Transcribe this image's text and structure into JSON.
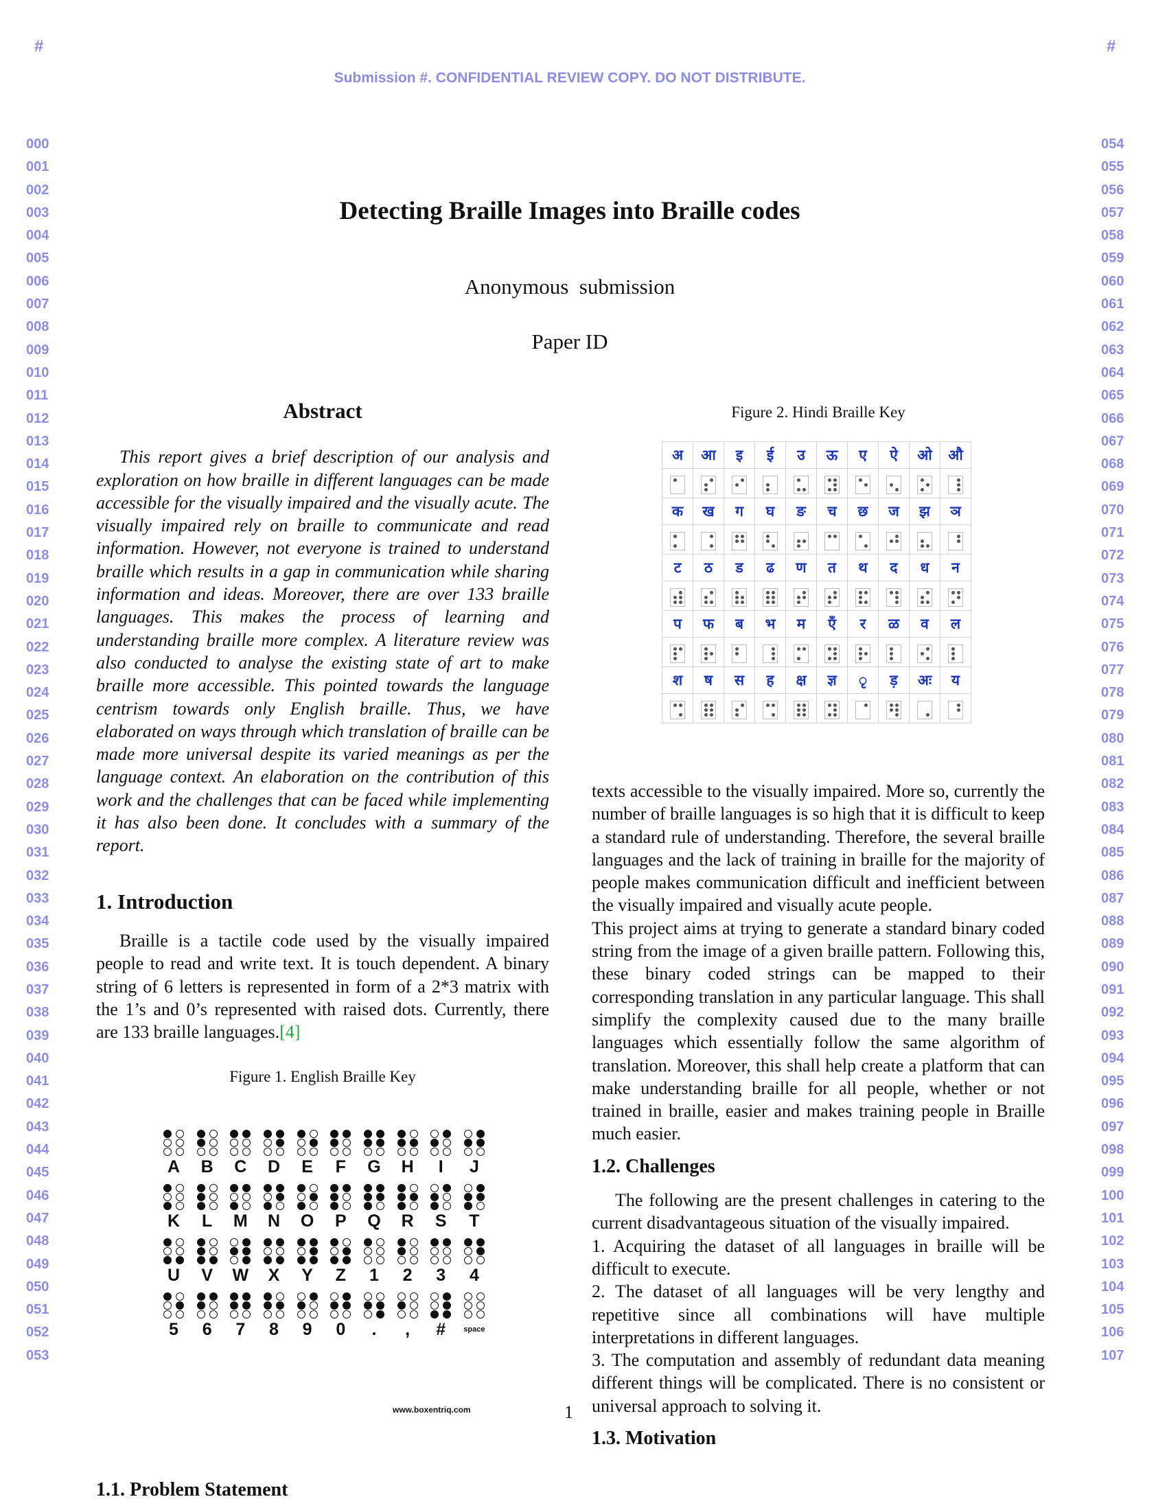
{
  "header": {
    "corner_left": "#",
    "corner_right": "#",
    "banner": "Submission #. CONFIDENTIAL REVIEW COPY. DO NOT DISTRIBUTE."
  },
  "line_numbers_left": [
    "000",
    "001",
    "002",
    "003",
    "004",
    "005",
    "006",
    "007",
    "008",
    "009",
    "010",
    "011",
    "012",
    "013",
    "014",
    "015",
    "016",
    "017",
    "018",
    "019",
    "020",
    "021",
    "022",
    "023",
    "024",
    "025",
    "026",
    "027",
    "028",
    "029",
    "030",
    "031",
    "032",
    "033",
    "034",
    "035",
    "036",
    "037",
    "038",
    "039",
    "040",
    "041",
    "042",
    "043",
    "044",
    "045",
    "046",
    "047",
    "048",
    "049",
    "050",
    "051",
    "052",
    "053"
  ],
  "line_numbers_right": [
    "054",
    "055",
    "056",
    "057",
    "058",
    "059",
    "060",
    "061",
    "062",
    "063",
    "064",
    "065",
    "066",
    "067",
    "068",
    "069",
    "070",
    "071",
    "072",
    "073",
    "074",
    "075",
    "076",
    "077",
    "078",
    "079",
    "080",
    "081",
    "082",
    "083",
    "084",
    "085",
    "086",
    "087",
    "088",
    "089",
    "090",
    "091",
    "092",
    "093",
    "094",
    "095",
    "096",
    "097",
    "098",
    "099",
    "100",
    "101",
    "102",
    "103",
    "104",
    "105",
    "106",
    "107"
  ],
  "paper": {
    "title": "Detecting Braille Images into Braille codes",
    "author": "Anonymous  submission",
    "paper_id": "Paper ID"
  },
  "abstract": {
    "heading": "Abstract",
    "text": "This report gives a brief description of our analysis and exploration on how braille in different languages can be made accessible for the visually impaired and the visually acute. The visually impaired rely on braille to communicate and read information. However, not everyone is trained to understand braille which results in a gap in communication while sharing information and ideas. Moreover, there are over 133 braille languages. This makes the process of learning and understanding braille more complex. A literature review was also conducted to analyse the existing state of art to make braille more accessible. This pointed towards the language centrism towards only English braille. Thus, we have elaborated on ways through which translation of braille can be made more universal despite its varied meanings as per the language context. An elaboration on the contribution of this work and the challenges that can be faced while implementing it has also been done. It concludes with a summary of the report."
  },
  "intro": {
    "heading": "1. Introduction",
    "text": "Braille is a tactile code used by the visually impaired people to read and write text. It is touch dependent. A binary string of 6 letters is represented in form of a 2*3 matrix with the 1’s and 0’s represented with raised dots. Currently, there are 133 braille languages.",
    "cite": "4"
  },
  "figure1": {
    "caption": "Figure 1. English Braille Key",
    "website": "www.boxentriq.com",
    "rows": [
      [
        {
          "l": "A",
          "d": [
            1,
            0,
            0,
            0,
            0,
            0
          ]
        },
        {
          "l": "B",
          "d": [
            1,
            0,
            1,
            0,
            0,
            0
          ]
        },
        {
          "l": "C",
          "d": [
            1,
            1,
            0,
            0,
            0,
            0
          ]
        },
        {
          "l": "D",
          "d": [
            1,
            1,
            0,
            1,
            0,
            0
          ]
        },
        {
          "l": "E",
          "d": [
            1,
            0,
            0,
            1,
            0,
            0
          ]
        },
        {
          "l": "F",
          "d": [
            1,
            1,
            1,
            0,
            0,
            0
          ]
        },
        {
          "l": "G",
          "d": [
            1,
            1,
            1,
            1,
            0,
            0
          ]
        },
        {
          "l": "H",
          "d": [
            1,
            0,
            1,
            1,
            0,
            0
          ]
        },
        {
          "l": "I",
          "d": [
            0,
            1,
            1,
            0,
            0,
            0
          ]
        },
        {
          "l": "J",
          "d": [
            0,
            1,
            1,
            1,
            0,
            0
          ]
        }
      ],
      [
        {
          "l": "K",
          "d": [
            1,
            0,
            0,
            0,
            1,
            0
          ]
        },
        {
          "l": "L",
          "d": [
            1,
            0,
            1,
            0,
            1,
            0
          ]
        },
        {
          "l": "M",
          "d": [
            1,
            1,
            0,
            0,
            1,
            0
          ]
        },
        {
          "l": "N",
          "d": [
            1,
            1,
            0,
            1,
            1,
            0
          ]
        },
        {
          "l": "O",
          "d": [
            1,
            0,
            0,
            1,
            1,
            0
          ]
        },
        {
          "l": "P",
          "d": [
            1,
            1,
            1,
            0,
            1,
            0
          ]
        },
        {
          "l": "Q",
          "d": [
            1,
            1,
            1,
            1,
            1,
            0
          ]
        },
        {
          "l": "R",
          "d": [
            1,
            0,
            1,
            1,
            1,
            0
          ]
        },
        {
          "l": "S",
          "d": [
            0,
            1,
            1,
            0,
            1,
            0
          ]
        },
        {
          "l": "T",
          "d": [
            0,
            1,
            1,
            1,
            1,
            0
          ]
        }
      ],
      [
        {
          "l": "U",
          "d": [
            1,
            0,
            0,
            0,
            1,
            1
          ]
        },
        {
          "l": "V",
          "d": [
            1,
            0,
            1,
            0,
            1,
            1
          ]
        },
        {
          "l": "W",
          "d": [
            0,
            1,
            1,
            1,
            0,
            1
          ]
        },
        {
          "l": "X",
          "d": [
            1,
            1,
            0,
            0,
            1,
            1
          ]
        },
        {
          "l": "Y",
          "d": [
            1,
            1,
            0,
            1,
            1,
            1
          ]
        },
        {
          "l": "Z",
          "d": [
            1,
            0,
            0,
            1,
            1,
            1
          ]
        },
        {
          "l": "1",
          "d": [
            1,
            0,
            0,
            0,
            0,
            0
          ]
        },
        {
          "l": "2",
          "d": [
            1,
            0,
            1,
            0,
            0,
            0
          ]
        },
        {
          "l": "3",
          "d": [
            1,
            1,
            0,
            0,
            0,
            0
          ]
        },
        {
          "l": "4",
          "d": [
            1,
            1,
            0,
            1,
            0,
            0
          ]
        }
      ],
      [
        {
          "l": "5",
          "d": [
            1,
            0,
            0,
            1,
            0,
            0
          ]
        },
        {
          "l": "6",
          "d": [
            1,
            1,
            1,
            0,
            0,
            0
          ]
        },
        {
          "l": "7",
          "d": [
            1,
            1,
            1,
            1,
            0,
            0
          ]
        },
        {
          "l": "8",
          "d": [
            1,
            0,
            1,
            1,
            0,
            0
          ]
        },
        {
          "l": "9",
          "d": [
            0,
            1,
            1,
            0,
            0,
            0
          ]
        },
        {
          "l": "0",
          "d": [
            0,
            1,
            1,
            1,
            0,
            0
          ]
        },
        {
          "l": ".",
          "d": [
            0,
            0,
            1,
            1,
            0,
            1
          ]
        },
        {
          "l": ",",
          "d": [
            0,
            0,
            1,
            0,
            0,
            0
          ]
        },
        {
          "l": "#",
          "d": [
            0,
            1,
            0,
            1,
            1,
            1
          ]
        },
        {
          "l": "space",
          "d": [
            0,
            0,
            0,
            0,
            0,
            0
          ]
        }
      ]
    ]
  },
  "problem": {
    "heading": "1.1. Problem Statement"
  },
  "figure2": {
    "caption": "Figure 2. Hindi Braille Key",
    "rows": [
      [
        {
          "c": "अ",
          "d": [
            1,
            0,
            0,
            0,
            0,
            0
          ]
        },
        {
          "c": "आ",
          "d": [
            0,
            1,
            1,
            0,
            1,
            0
          ]
        },
        {
          "c": "इ",
          "d": [
            0,
            1,
            1,
            0,
            0,
            0
          ]
        },
        {
          "c": "ई",
          "d": [
            0,
            0,
            1,
            0,
            1,
            0
          ]
        },
        {
          "c": "उ",
          "d": [
            1,
            0,
            0,
            0,
            1,
            1
          ]
        },
        {
          "c": "ऊ",
          "d": [
            1,
            1,
            0,
            1,
            1,
            1
          ]
        },
        {
          "c": "ए",
          "d": [
            1,
            0,
            0,
            1,
            0,
            0
          ]
        },
        {
          "c": "ऐ",
          "d": [
            0,
            0,
            1,
            0,
            0,
            1
          ]
        },
        {
          "c": "ओ",
          "d": [
            1,
            0,
            0,
            1,
            1,
            0
          ]
        },
        {
          "c": "औ",
          "d": [
            0,
            1,
            0,
            1,
            0,
            1
          ]
        }
      ],
      [
        {
          "c": "क",
          "d": [
            1,
            0,
            0,
            0,
            1,
            0
          ]
        },
        {
          "c": "ख",
          "d": [
            0,
            1,
            0,
            0,
            0,
            1
          ]
        },
        {
          "c": "ग",
          "d": [
            1,
            1,
            1,
            1,
            0,
            0
          ]
        },
        {
          "c": "घ",
          "d": [
            1,
            0,
            1,
            0,
            0,
            1
          ]
        },
        {
          "c": "ङ",
          "d": [
            0,
            0,
            1,
            1,
            1,
            0
          ]
        },
        {
          "c": "च",
          "d": [
            1,
            1,
            0,
            0,
            0,
            0
          ]
        },
        {
          "c": "छ",
          "d": [
            1,
            0,
            0,
            0,
            0,
            1
          ]
        },
        {
          "c": "ज",
          "d": [
            0,
            1,
            1,
            1,
            0,
            0
          ]
        },
        {
          "c": "झ",
          "d": [
            0,
            0,
            1,
            0,
            1,
            1
          ]
        },
        {
          "c": "ञ",
          "d": [
            0,
            1,
            0,
            1,
            0,
            0
          ]
        }
      ],
      [
        {
          "c": "ट",
          "d": [
            0,
            1,
            1,
            1,
            1,
            1
          ]
        },
        {
          "c": "ठ",
          "d": [
            0,
            1,
            1,
            0,
            1,
            1
          ]
        },
        {
          "c": "ड",
          "d": [
            1,
            0,
            1,
            1,
            1,
            1
          ]
        },
        {
          "c": "ढ",
          "d": [
            1,
            1,
            1,
            1,
            1,
            1
          ]
        },
        {
          "c": "ण",
          "d": [
            0,
            1,
            1,
            1,
            1,
            0
          ]
        },
        {
          "c": "त",
          "d": [
            0,
            1,
            1,
            1,
            1,
            0
          ]
        },
        {
          "c": "थ",
          "d": [
            1,
            1,
            1,
            0,
            1,
            1
          ]
        },
        {
          "c": "द",
          "d": [
            1,
            1,
            0,
            1,
            0,
            1
          ]
        },
        {
          "c": "ध",
          "d": [
            0,
            1,
            1,
            0,
            1,
            1
          ]
        },
        {
          "c": "न",
          "d": [
            1,
            1,
            0,
            1,
            1,
            0
          ]
        }
      ],
      [
        {
          "c": "प",
          "d": [
            1,
            1,
            1,
            0,
            1,
            0
          ]
        },
        {
          "c": "फ",
          "d": [
            1,
            0,
            1,
            1,
            1,
            0
          ]
        },
        {
          "c": "ब",
          "d": [
            1,
            0,
            1,
            0,
            0,
            0
          ]
        },
        {
          "c": "भ",
          "d": [
            0,
            1,
            0,
            1,
            0,
            1
          ]
        },
        {
          "c": "म",
          "d": [
            1,
            1,
            0,
            0,
            1,
            0
          ]
        },
        {
          "c": "एँ",
          "d": [
            1,
            1,
            0,
            1,
            1,
            1
          ]
        },
        {
          "c": "र",
          "d": [
            1,
            0,
            1,
            1,
            1,
            0
          ]
        },
        {
          "c": "ळ",
          "d": [
            1,
            0,
            1,
            0,
            1,
            0
          ]
        },
        {
          "c": "व",
          "d": [
            0,
            1,
            1,
            0,
            0,
            1
          ]
        },
        {
          "c": "ल",
          "d": [
            1,
            0,
            1,
            0,
            1,
            0
          ]
        }
      ],
      [
        {
          "c": "श",
          "d": [
            1,
            1,
            0,
            0,
            0,
            1
          ]
        },
        {
          "c": "ष",
          "d": [
            1,
            1,
            1,
            1,
            1,
            1
          ]
        },
        {
          "c": "स",
          "d": [
            0,
            1,
            1,
            0,
            1,
            0
          ]
        },
        {
          "c": "ह",
          "d": [
            1,
            1,
            0,
            0,
            0,
            1
          ]
        },
        {
          "c": "क्ष",
          "d": [
            1,
            1,
            1,
            1,
            1,
            1
          ]
        },
        {
          "c": "ज्ञ",
          "d": [
            1,
            1,
            0,
            1,
            1,
            1
          ]
        },
        {
          "c": "ृ",
          "d": [
            0,
            1,
            0,
            0,
            0,
            0
          ]
        },
        {
          "c": "ड़",
          "d": [
            1,
            1,
            1,
            1,
            0,
            1
          ]
        },
        {
          "c": "अः",
          "d": [
            0,
            0,
            0,
            0,
            0,
            1
          ]
        },
        {
          "c": "य",
          "d": [
            0,
            1,
            0,
            1,
            0,
            0
          ]
        }
      ]
    ]
  },
  "right_text": {
    "p1": "texts accessible to the visually impaired. More so, currently the number of braille languages is so high that it is difficult to keep a standard rule of understanding. Therefore, the several braille languages and the lack of training in braille for the majority of people makes communication difficult and inefficient between the visually impaired and visually acute people.",
    "p2": "This project aims at trying to generate a standard binary coded string from the image of a given braille pattern. Following this, these binary coded strings can be mapped to their corresponding translation in any particular language. This shall simplify the complexity caused due to the many braille languages which essentially follow the same algorithm of translation. Moreover, this shall help create a platform that can make understanding braille for all people, whether or not trained in braille, easier and makes training people in Braille much easier."
  },
  "challenges": {
    "heading": "1.2. Challenges",
    "intro": "The following are the present challenges in catering to the current disadvantageous situation of the visually impaired.",
    "items": [
      "1. Acquiring the dataset of all languages in braille will be difficult to execute.",
      "2. The dataset of all languages will be very lengthy and repetitive since all combinations will have multiple interpretations in different languages.",
      "3. The computation and assembly of redundant data meaning different things will be complicated. There is no consistent or universal approach to solving it."
    ]
  },
  "motivation": {
    "heading": "1.3. Motivation"
  },
  "page_number": "1"
}
